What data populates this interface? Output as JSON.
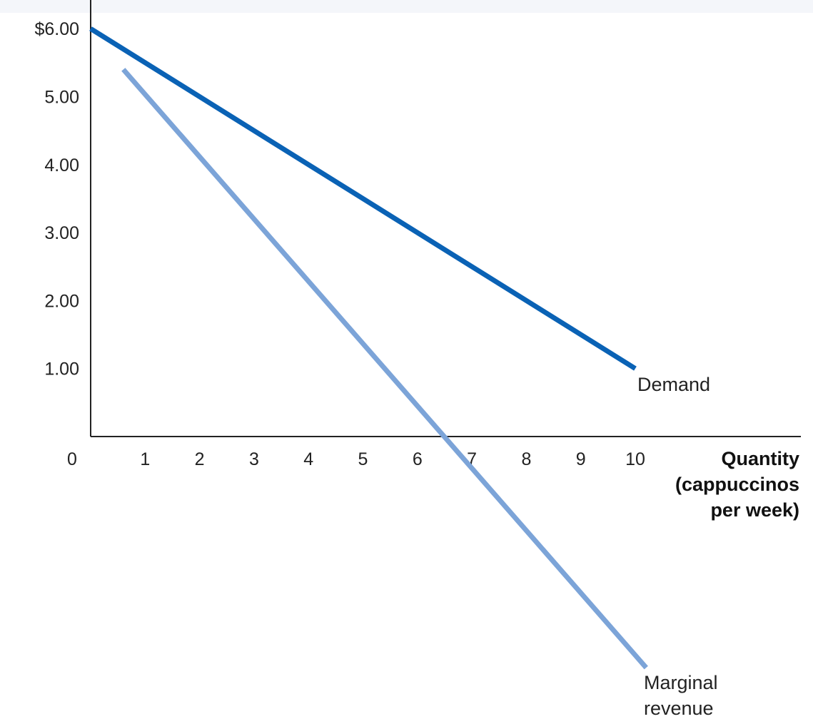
{
  "chart_data": {
    "type": "line",
    "xlabel_lines": [
      "Quantity",
      "(cappuccinos",
      "per week)"
    ],
    "ylabel": "",
    "xlim": [
      0,
      10
    ],
    "ylim": [
      0,
      6
    ],
    "x_ticks": [
      "0",
      "1",
      "2",
      "3",
      "4",
      "5",
      "6",
      "7",
      "8",
      "9",
      "10"
    ],
    "y_ticks": [
      {
        "value": 1,
        "label": "1.00"
      },
      {
        "value": 2,
        "label": "2.00"
      },
      {
        "value": 3,
        "label": "3.00"
      },
      {
        "value": 4,
        "label": "4.00"
      },
      {
        "value": 5,
        "label": "5.00"
      },
      {
        "value": 6,
        "label": "$6.00"
      }
    ],
    "series": [
      {
        "name": "Demand",
        "color": "#0a62b5",
        "points": [
          {
            "x": 0,
            "y": 6.0
          },
          {
            "x": 10,
            "y": 1.0
          }
        ]
      },
      {
        "name": "Marginal revenue",
        "label_lines": [
          "Marginal",
          "revenue"
        ],
        "color": "#7ca4d8",
        "points": [
          {
            "x": 0.6,
            "y": 5.4
          },
          {
            "x": 10.2,
            "y": -3.4
          }
        ]
      }
    ]
  }
}
